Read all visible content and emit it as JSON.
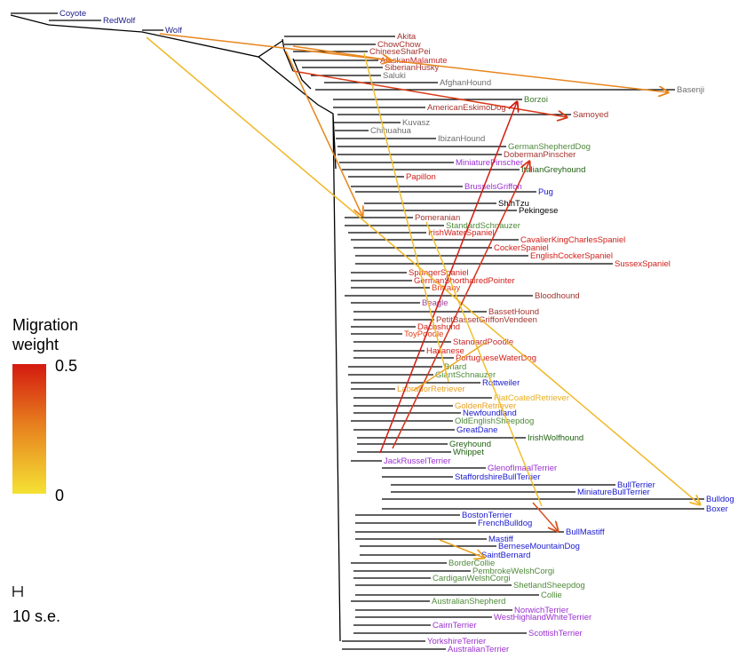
{
  "leaves": [
    {
      "label": "Coyote",
      "color": "#1c1c8a"
    },
    {
      "label": "RedWolf",
      "color": "#1c1c8a"
    },
    {
      "label": "Wolf",
      "color": "#1c1c8a"
    },
    {
      "label": "Akita",
      "color": "#a3332e"
    },
    {
      "label": "ChowChow",
      "color": "#a3332e"
    },
    {
      "label": "ChineseSharPei",
      "color": "#a3332e"
    },
    {
      "label": "AlaskanMalamute",
      "color": "#c4262a"
    },
    {
      "label": "SiberianHusky",
      "color": "#a3332e"
    },
    {
      "label": "Saluki",
      "color": "#6e6e6e"
    },
    {
      "label": "AfghanHound",
      "color": "#6e6e6e"
    },
    {
      "label": "Basenji",
      "color": "#6e6e6e"
    },
    {
      "label": "Borzoi",
      "color": "#3c7a2a"
    },
    {
      "label": "AmericanEskimoDog",
      "color": "#a3332e"
    },
    {
      "label": "Samoyed",
      "color": "#a3332e"
    },
    {
      "label": "Kuvasz",
      "color": "#6e6e6e"
    },
    {
      "label": "Chihuahua",
      "color": "#6e6e6e"
    },
    {
      "label": "IbizanHound",
      "color": "#6e6e6e"
    },
    {
      "label": "GermanShepherdDog",
      "color": "#4f8a3a"
    },
    {
      "label": "DobermanPinscher",
      "color": "#a3332e"
    },
    {
      "label": "MiniaturePinscher",
      "color": "#9b30d0"
    },
    {
      "label": "ItalianGreyhound",
      "color": "#1f5f10"
    },
    {
      "label": "Papillon",
      "color": "#d0201a"
    },
    {
      "label": "BrusselsGriffon",
      "color": "#9b30d0"
    },
    {
      "label": "Pug",
      "color": "#1a1ad0"
    },
    {
      "label": "ShihTzu",
      "color": "#000000"
    },
    {
      "label": "Pekingese",
      "color": "#000000"
    },
    {
      "label": "Pomeranian",
      "color": "#a3332e"
    },
    {
      "label": "StandardSchnauzer",
      "color": "#4f8a3a"
    },
    {
      "label": "IrishWaterSpaniel",
      "color": "#d0201a"
    },
    {
      "label": "CavalierKingCharlesSpaniel",
      "color": "#d0201a"
    },
    {
      "label": "CockerSpaniel",
      "color": "#d0201a"
    },
    {
      "label": "EnglishCockerSpaniel",
      "color": "#d0201a"
    },
    {
      "label": "SussexSpaniel",
      "color": "#d0201a"
    },
    {
      "label": "SpringerSpaniel",
      "color": "#d0201a"
    },
    {
      "label": "GermanShorthairedPointer",
      "color": "#d0201a"
    },
    {
      "label": "Brittany",
      "color": "#e0401a"
    },
    {
      "label": "Bloodhound",
      "color": "#a3332e"
    },
    {
      "label": "Beagle",
      "color": "#a0409a"
    },
    {
      "label": "BassetHound",
      "color": "#a3332e"
    },
    {
      "label": "PetitBassetGriffonVendeen",
      "color": "#a3332e"
    },
    {
      "label": "Dachshund",
      "color": "#d0201a"
    },
    {
      "label": "ToyPoodle",
      "color": "#e0401a"
    },
    {
      "label": "StandardPoodle",
      "color": "#c4262a"
    },
    {
      "label": "Havanese",
      "color": "#d0201a"
    },
    {
      "label": "PortugueseWaterDog",
      "color": "#d0201a"
    },
    {
      "label": "Briard",
      "color": "#4f8a3a"
    },
    {
      "label": "GiantSchnauzer",
      "color": "#4f8a3a"
    },
    {
      "label": "Rottweiler",
      "color": "#1a1ad0"
    },
    {
      "label": "LabradorRetriever",
      "color": "#e8a020"
    },
    {
      "label": "FlatCoatedRetriever",
      "color": "#e8b020"
    },
    {
      "label": "GoldenRetriever",
      "color": "#e8a020"
    },
    {
      "label": "Newfoundland",
      "color": "#1a1ad0"
    },
    {
      "label": "OldEnglishSheepdog",
      "color": "#4f8a3a"
    },
    {
      "label": "GreatDane",
      "color": "#1a1ad0"
    },
    {
      "label": "IrishWolfhound",
      "color": "#1f5f10"
    },
    {
      "label": "Greyhound",
      "color": "#1f5f10"
    },
    {
      "label": "Whippet",
      "color": "#1f5f10"
    },
    {
      "label": "JackRusselTerrier",
      "color": "#9b30d0"
    },
    {
      "label": "GlenofImaalTerrier",
      "color": "#9b30d0"
    },
    {
      "label": "StaffordshireBullTerrier",
      "color": "#1a1ad0"
    },
    {
      "label": "BullTerrier",
      "color": "#1a1ad0"
    },
    {
      "label": "MiniatureBullTerrier",
      "color": "#1a1ad0"
    },
    {
      "label": "Bulldog",
      "color": "#1a1ad0"
    },
    {
      "label": "Boxer",
      "color": "#1a1ad0"
    },
    {
      "label": "BostonTerrier",
      "color": "#1a1ad0"
    },
    {
      "label": "FrenchBulldog",
      "color": "#1a1ad0"
    },
    {
      "label": "BullMastiff",
      "color": "#1a1ad0"
    },
    {
      "label": "Mastiff",
      "color": "#1a1ad0"
    },
    {
      "label": "BerneseMountainDog",
      "color": "#1a1ad0"
    },
    {
      "label": "SaintBernard",
      "color": "#1a1ad0"
    },
    {
      "label": "BorderCollie",
      "color": "#4f8a3a"
    },
    {
      "label": "PembrokeWelshCorgi",
      "color": "#4f8a3a"
    },
    {
      "label": "CardiganWelshCorgi",
      "color": "#4f8a3a"
    },
    {
      "label": "ShetlandSheepdog",
      "color": "#4f8a3a"
    },
    {
      "label": "Collie",
      "color": "#4f8a3a"
    },
    {
      "label": "AustralianShepherd",
      "color": "#4f8a3a"
    },
    {
      "label": "NorwichTerrier",
      "color": "#9b30d0"
    },
    {
      "label": "WestHighlandWhiteTerrier",
      "color": "#9b30d0"
    },
    {
      "label": "CairnTerrier",
      "color": "#9b30d0"
    },
    {
      "label": "ScottishTerrier",
      "color": "#9b30d0"
    },
    {
      "label": "YorkshireTerrier",
      "color": "#9b30d0"
    },
    {
      "label": "AustralianTerrier",
      "color": "#9b30d0"
    }
  ],
  "legend": {
    "title_lines": [
      "Migration",
      "weight"
    ],
    "max": 0.5,
    "min": 0,
    "colors": [
      "#f5e234",
      "#e8861f",
      "#d41a10"
    ]
  },
  "scale": {
    "label": "10 s.e."
  }
}
